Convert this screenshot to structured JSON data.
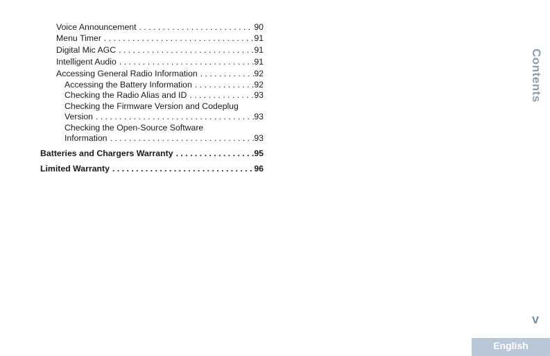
{
  "toc": [
    {
      "level": 1,
      "label": "Voice Announcement",
      "page": "90"
    },
    {
      "level": 1,
      "label": "Menu Timer",
      "page": "91"
    },
    {
      "level": 1,
      "label": "Digital Mic AGC",
      "page": "91"
    },
    {
      "level": 1,
      "label": "Intelligent Audio",
      "page": "91"
    },
    {
      "level": 1,
      "label": "Accessing General Radio Information",
      "page": "92"
    },
    {
      "level": 2,
      "label": "Accessing the Battery Information",
      "page": "92"
    },
    {
      "level": 2,
      "label": "Checking the Radio Alias and ID",
      "page": "93"
    },
    {
      "level": 2,
      "label_line1": "Checking the Firmware Version and Codeplug",
      "label": "Version",
      "page": "93"
    },
    {
      "level": 2,
      "label_line1": "Checking the Open-Source Software",
      "label": "Information",
      "page": "93"
    },
    {
      "level": 0,
      "label": "Batteries and Chargers Warranty",
      "page": "95"
    },
    {
      "level": 0,
      "label": "Limited Warranty",
      "page": "96"
    }
  ],
  "side_tab": "Contents",
  "page_number": "v",
  "language_tab": "English"
}
